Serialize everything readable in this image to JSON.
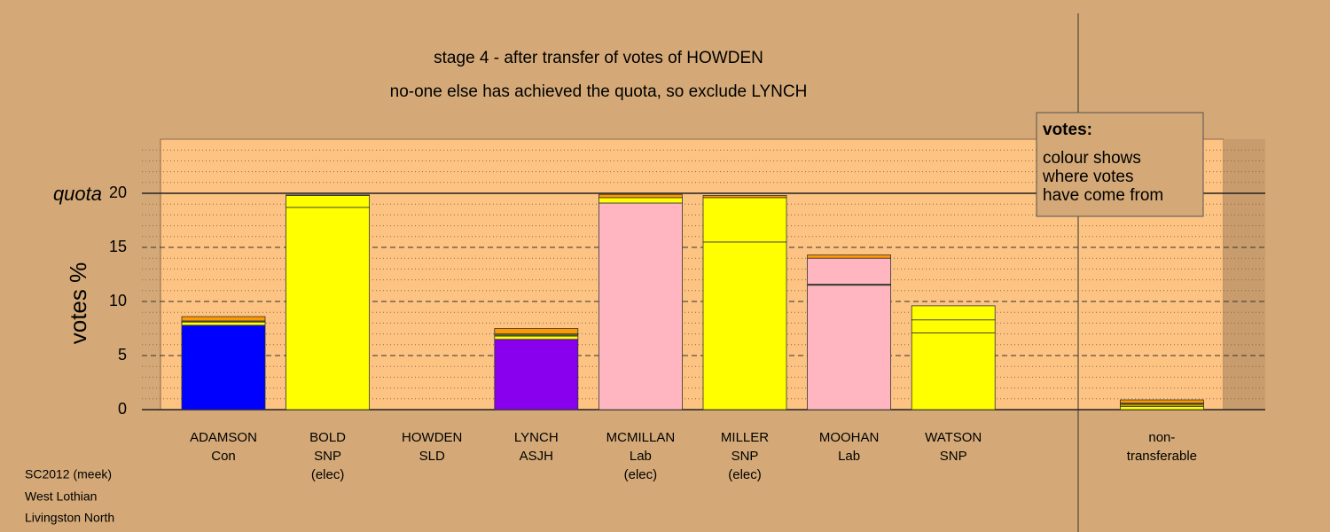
{
  "chart_data": {
    "type": "stacked_bar",
    "title": "stage 4 - after transfer of votes of HOWDEN",
    "subtitle": "no-one else has achieved the quota, so exclude LYNCH",
    "y_label": "votes %",
    "categories": [
      [
        "ADAMSON",
        "Con"
      ],
      [
        "BOLD",
        "SNP",
        "(elec)"
      ],
      [
        "HOWDEN",
        "SLD"
      ],
      [
        "LYNCH",
        "ASJH"
      ],
      [
        "MCMILLAN",
        "Lab",
        "(elec)"
      ],
      [
        "MILLER",
        "SNP",
        "(elec)"
      ],
      [
        "MOOHAN",
        "Lab"
      ],
      [
        "WATSON",
        "SNP"
      ],
      [
        "non-",
        "transferable"
      ]
    ],
    "series": [
      {
        "colors": [
          "#0000ff",
          "#ffff00",
          "#ffff00",
          "#8800ee",
          "#ffb6c1",
          "#ffff00",
          "#ffb6c1",
          "#ffff00",
          "#ffff00"
        ],
        "values": [
          7.8,
          18.7,
          0,
          6.5,
          19.1,
          15.5,
          11.5,
          7.1,
          0.3
        ]
      },
      {
        "colors": [
          "#ffff00",
          "#ffff00",
          "#ffff00",
          "#ffff00",
          "#ffff00",
          "#ffff00",
          "#556b2f",
          "#ffff00",
          "#ccaa00"
        ],
        "values": [
          0.3,
          1.1,
          0,
          0.3,
          0.5,
          4.1,
          0.1,
          1.2,
          0.2
        ]
      },
      {
        "colors": [
          "#556b2f",
          "#556b2f",
          "#556b2f",
          "#556b2f",
          "#556b2f",
          "#556b2f",
          "#ffb6c1",
          "#ffff00",
          "#556b2f"
        ],
        "values": [
          0.1,
          0,
          0,
          0.2,
          0,
          0,
          2.4,
          1.3,
          0.1
        ]
      },
      {
        "colors": [
          "#ff9900",
          "#ff9900",
          "#ff9900",
          "#ff9900",
          "#ff9900",
          "#ff9900",
          "#ff9900",
          "#ff9900",
          "#ff9900"
        ],
        "values": [
          0.4,
          0.05,
          0,
          0.5,
          0.3,
          0.2,
          0.3,
          0,
          0.3
        ]
      }
    ],
    "ylim": [
      0,
      25
    ],
    "yticks": [
      0,
      5,
      10,
      15,
      20
    ],
    "minor_yticks": [
      1,
      2,
      3,
      4,
      6,
      7,
      8,
      9,
      11,
      12,
      13,
      14,
      16,
      17,
      18,
      19,
      21,
      22,
      23,
      24
    ],
    "quota": {
      "value": 20,
      "label": "quota"
    },
    "legend": {
      "title": "votes:",
      "lines": [
        "colour shows",
        "where votes",
        "have come from"
      ]
    },
    "footer": [
      "SC2012 (meek)",
      "West Lothian",
      "Livingston North"
    ]
  }
}
